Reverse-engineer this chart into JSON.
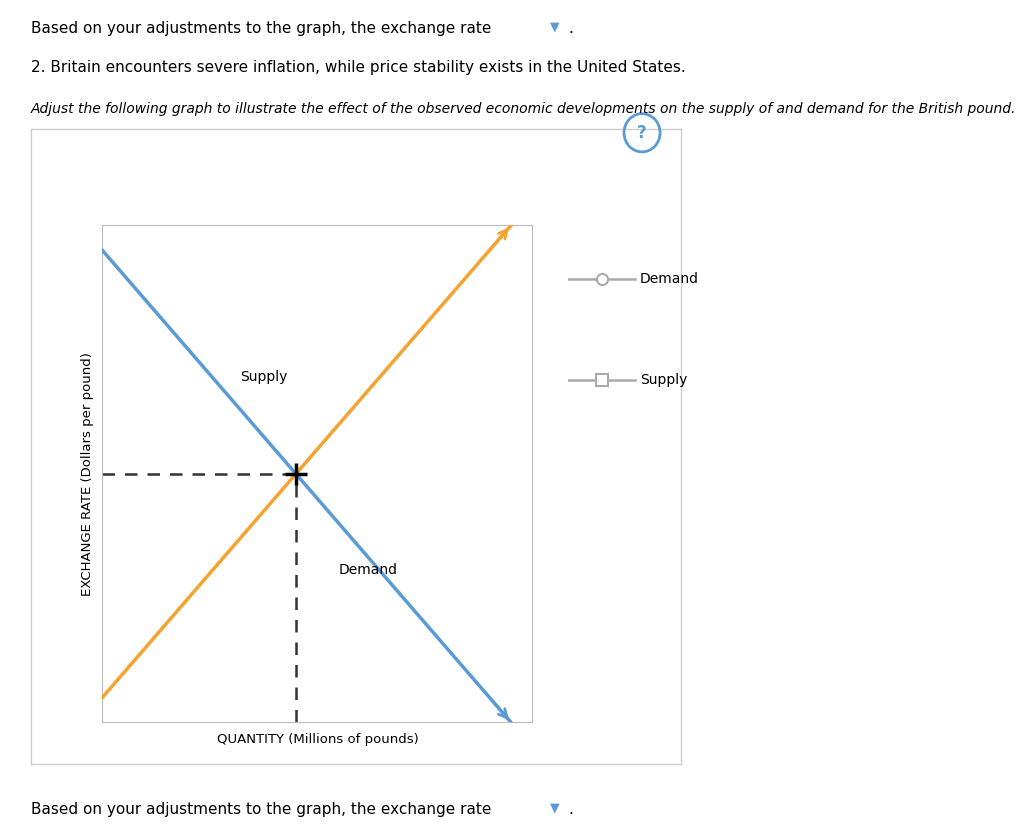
{
  "title_text1": "Based on your adjustments to the graph, the exchange rate",
  "title_text2": "2. Britain encounters severe inflation, while price stability exists in the United States.",
  "italic_text": "Adjust the following graph to illustrate the effect of the observed economic developments on the supply of and demand for the British pound.",
  "xlabel": "QUANTITY (Millions of pounds)",
  "ylabel": "EXCHANGE RATE (Dollars per pound)",
  "bottom_text": "Based on your adjustments to the graph, the exchange rate",
  "demand_color": "#5b9bd5",
  "supply_color": "#f4a330",
  "dashed_color": "#333333",
  "legend_line_color": "#aaaaaa",
  "box_bg": "#ffffff",
  "box_border": "#cccccc",
  "question_circle_color": "#5b9bd5",
  "supply_label": "Supply",
  "demand_label": "Demand",
  "x_range": [
    0,
    10
  ],
  "y_range": [
    0,
    10
  ],
  "equilibrium_x": 4.5,
  "equilibrium_y": 5.0
}
